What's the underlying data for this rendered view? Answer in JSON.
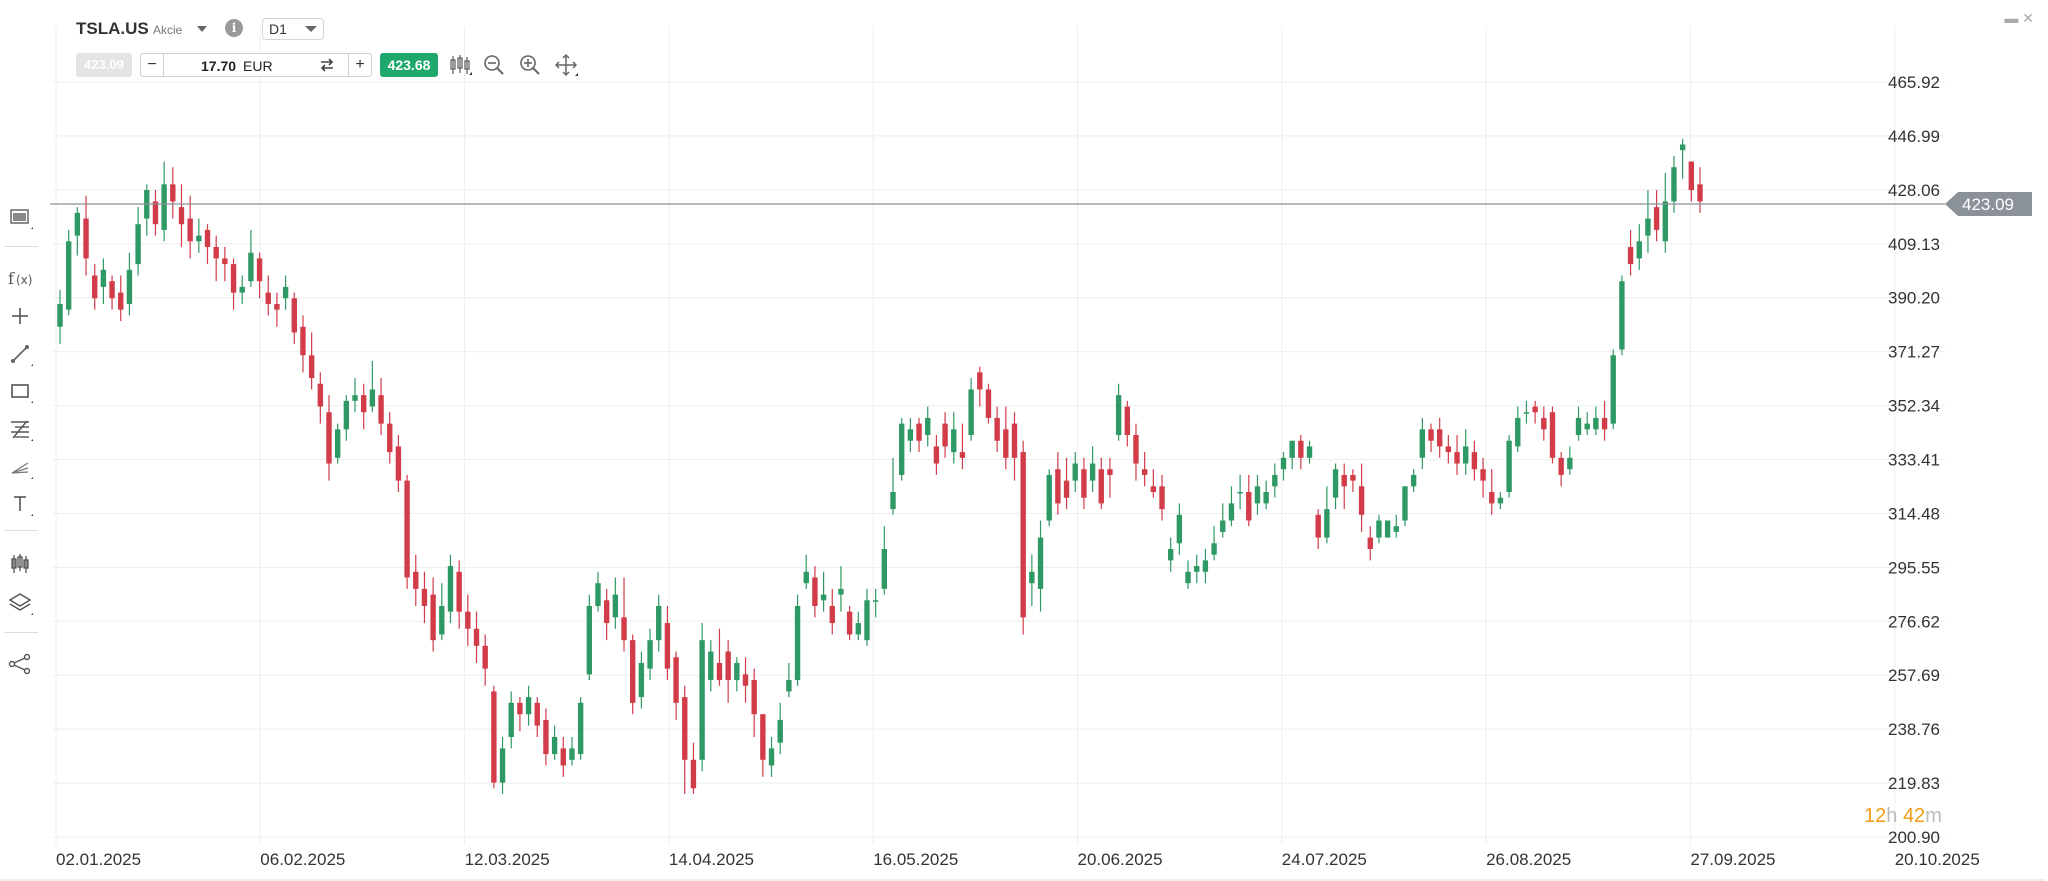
{
  "header": {
    "symbol": "TSLA.US",
    "symbol_type": "Akcie",
    "timeframe": "D1",
    "icons": {
      "info": "info-icon",
      "dropdown": "chevron-down-icon"
    }
  },
  "trade": {
    "sell_price": "423.09",
    "buy_price": "423.68",
    "quantity": "17.70",
    "currency": "EUR",
    "minus_label": "−",
    "plus_label": "+",
    "colors": {
      "buy": "#1fa86b",
      "sell_disabled": "#e4e4e4"
    }
  },
  "toolbar_icons": [
    "candles-icon",
    "zoom-out-icon",
    "zoom-in-icon",
    "crosshair-move-icon"
  ],
  "left_toolbar_icons": [
    "window-icon",
    "function-icon",
    "crosshair-icon",
    "line-tool-icon",
    "rectangle-icon",
    "fibonacci-icon",
    "pitchfork-icon",
    "text-tool-icon",
    "chart-type-icon",
    "layers-icon",
    "share-icon"
  ],
  "countdown": {
    "hours": "12",
    "h_unit": "h",
    "minutes": "42",
    "m_unit": "m"
  },
  "chart_data": {
    "type": "candlestick",
    "symbol": "TSLA.US",
    "timeframe": "D1",
    "current_price": 423.09,
    "y_range": [
      200.9,
      465.92
    ],
    "y_ticks": [
      "465.92",
      "446.99",
      "428.06",
      "409.13",
      "390.20",
      "371.27",
      "352.34",
      "333.41",
      "314.48",
      "295.55",
      "276.62",
      "257.69",
      "238.76",
      "219.83",
      "200.90"
    ],
    "x_ticks": [
      "02.01.2025",
      "06.02.2025",
      "12.03.2025",
      "14.04.2025",
      "16.05.2025",
      "20.06.2025",
      "24.07.2025",
      "26.08.2025",
      "27.09.2025",
      "20.10.2025"
    ],
    "up_color": "#2e9964",
    "down_color": "#d23b48",
    "grid": true,
    "candles": [
      [
        380,
        388,
        374,
        393
      ],
      [
        386,
        410,
        384,
        414
      ],
      [
        412,
        420,
        405,
        422
      ],
      [
        418,
        404,
        398,
        426
      ],
      [
        398,
        390,
        386,
        402
      ],
      [
        394,
        400,
        388,
        404
      ],
      [
        396,
        390,
        386,
        398
      ],
      [
        392,
        386,
        382,
        398
      ],
      [
        388,
        400,
        384,
        406
      ],
      [
        402,
        416,
        398,
        422
      ],
      [
        418,
        428,
        412,
        430
      ],
      [
        424,
        416,
        412,
        428
      ],
      [
        414,
        430,
        410,
        438
      ],
      [
        430,
        424,
        418,
        436
      ],
      [
        422,
        416,
        408,
        430
      ],
      [
        418,
        410,
        404,
        426
      ],
      [
        410,
        412,
        406,
        418
      ],
      [
        414,
        408,
        402,
        416
      ],
      [
        408,
        404,
        396,
        412
      ],
      [
        404,
        402,
        396,
        408
      ],
      [
        402,
        392,
        386,
        404
      ],
      [
        392,
        394,
        388,
        398
      ],
      [
        396,
        406,
        394,
        414
      ],
      [
        404,
        396,
        390,
        406
      ],
      [
        392,
        388,
        384,
        398
      ],
      [
        388,
        386,
        380,
        392
      ],
      [
        390,
        394,
        386,
        398
      ],
      [
        390,
        378,
        374,
        392
      ],
      [
        380,
        370,
        364,
        384
      ],
      [
        370,
        362,
        358,
        378
      ],
      [
        360,
        352,
        346,
        364
      ],
      [
        350,
        332,
        326,
        356
      ],
      [
        334,
        344,
        332,
        346
      ],
      [
        344,
        354,
        340,
        356
      ],
      [
        354,
        356,
        350,
        362
      ],
      [
        356,
        350,
        344,
        360
      ],
      [
        352,
        358,
        350,
        368
      ],
      [
        356,
        346,
        342,
        362
      ],
      [
        346,
        336,
        332,
        350
      ],
      [
        338,
        326,
        322,
        342
      ],
      [
        326,
        292,
        288,
        328
      ],
      [
        294,
        288,
        282,
        300
      ],
      [
        288,
        282,
        276,
        294
      ],
      [
        286,
        270,
        266,
        292
      ],
      [
        272,
        282,
        270,
        290
      ],
      [
        280,
        296,
        276,
        300
      ],
      [
        294,
        280,
        274,
        298
      ],
      [
        280,
        274,
        268,
        286
      ],
      [
        274,
        268,
        262,
        280
      ],
      [
        268,
        260,
        254,
        272
      ],
      [
        252,
        220,
        218,
        254
      ],
      [
        220,
        232,
        216,
        236
      ],
      [
        236,
        248,
        232,
        252
      ],
      [
        248,
        244,
        238,
        250
      ],
      [
        244,
        250,
        240,
        254
      ],
      [
        248,
        240,
        236,
        250
      ],
      [
        242,
        230,
        226,
        246
      ],
      [
        230,
        236,
        228,
        240
      ],
      [
        232,
        226,
        222,
        236
      ],
      [
        228,
        232,
        226,
        236
      ],
      [
        230,
        248,
        228,
        250
      ],
      [
        258,
        282,
        256,
        286
      ],
      [
        282,
        290,
        280,
        294
      ],
      [
        284,
        276,
        270,
        288
      ],
      [
        278,
        286,
        274,
        292
      ],
      [
        278,
        270,
        266,
        292
      ],
      [
        270,
        248,
        244,
        272
      ],
      [
        250,
        262,
        246,
        266
      ],
      [
        260,
        270,
        256,
        274
      ],
      [
        270,
        282,
        266,
        286
      ],
      [
        276,
        260,
        256,
        282
      ],
      [
        264,
        248,
        242,
        266
      ],
      [
        250,
        228,
        216,
        254
      ],
      [
        228,
        218,
        216,
        234
      ],
      [
        228,
        270,
        224,
        276
      ],
      [
        256,
        266,
        252,
        270
      ],
      [
        262,
        256,
        254,
        274
      ],
      [
        266,
        256,
        248,
        270
      ],
      [
        256,
        262,
        252,
        264
      ],
      [
        258,
        254,
        248,
        264
      ],
      [
        256,
        244,
        236,
        260
      ],
      [
        244,
        228,
        222,
        244
      ],
      [
        226,
        232,
        222,
        236
      ],
      [
        234,
        242,
        230,
        248
      ],
      [
        252,
        256,
        250,
        262
      ],
      [
        256,
        282,
        254,
        286
      ],
      [
        290,
        294,
        288,
        300
      ],
      [
        292,
        282,
        278,
        296
      ],
      [
        284,
        286,
        280,
        294
      ],
      [
        282,
        276,
        272,
        288
      ],
      [
        286,
        288,
        280,
        296
      ],
      [
        280,
        272,
        270,
        282
      ],
      [
        272,
        276,
        270,
        280
      ],
      [
        270,
        284,
        268,
        288
      ],
      [
        284,
        284,
        278,
        288
      ],
      [
        288,
        302,
        286,
        310
      ],
      [
        316,
        322,
        314,
        334
      ],
      [
        328,
        346,
        326,
        348
      ],
      [
        340,
        344,
        336,
        348
      ],
      [
        346,
        340,
        336,
        348
      ],
      [
        342,
        348,
        338,
        352
      ],
      [
        338,
        332,
        328,
        342
      ],
      [
        346,
        338,
        334,
        350
      ],
      [
        336,
        344,
        332,
        350
      ],
      [
        336,
        334,
        330,
        346
      ],
      [
        342,
        358,
        340,
        362
      ],
      [
        364,
        358,
        352,
        366
      ],
      [
        358,
        348,
        346,
        360
      ],
      [
        348,
        340,
        336,
        352
      ],
      [
        344,
        334,
        330,
        352
      ],
      [
        346,
        334,
        326,
        350
      ],
      [
        336,
        278,
        272,
        340
      ],
      [
        290,
        294,
        282,
        300
      ],
      [
        288,
        306,
        280,
        312
      ],
      [
        312,
        328,
        310,
        330
      ],
      [
        330,
        318,
        314,
        336
      ],
      [
        326,
        320,
        316,
        334
      ],
      [
        326,
        332,
        322,
        336
      ],
      [
        330,
        320,
        316,
        334
      ],
      [
        326,
        332,
        322,
        338
      ],
      [
        330,
        318,
        316,
        334
      ],
      [
        330,
        328,
        320,
        334
      ],
      [
        342,
        356,
        340,
        360
      ],
      [
        352,
        342,
        338,
        354
      ],
      [
        342,
        332,
        326,
        346
      ],
      [
        330,
        328,
        324,
        336
      ],
      [
        324,
        322,
        320,
        330
      ],
      [
        324,
        316,
        312,
        328
      ],
      [
        298,
        302,
        294,
        306
      ],
      [
        304,
        314,
        300,
        318
      ],
      [
        290,
        294,
        288,
        298
      ],
      [
        294,
        296,
        290,
        300
      ],
      [
        294,
        298,
        290,
        302
      ],
      [
        300,
        304,
        298,
        310
      ],
      [
        308,
        312,
        306,
        318
      ],
      [
        312,
        318,
        310,
        324
      ],
      [
        322,
        322,
        316,
        328
      ],
      [
        322,
        312,
        310,
        328
      ],
      [
        318,
        324,
        314,
        328
      ],
      [
        318,
        322,
        316,
        326
      ],
      [
        324,
        328,
        320,
        332
      ],
      [
        330,
        334,
        326,
        336
      ],
      [
        334,
        340,
        330,
        340
      ],
      [
        340,
        334,
        330,
        342
      ],
      [
        334,
        338,
        332,
        340
      ],
      [
        314,
        306,
        302,
        316
      ],
      [
        306,
        316,
        304,
        324
      ],
      [
        320,
        330,
        316,
        332
      ],
      [
        328,
        324,
        316,
        332
      ],
      [
        328,
        326,
        322,
        330
      ],
      [
        324,
        314,
        308,
        332
      ],
      [
        306,
        302,
        298,
        310
      ],
      [
        306,
        312,
        304,
        314
      ],
      [
        306,
        312,
        306,
        312
      ],
      [
        308,
        310,
        306,
        314
      ],
      [
        312,
        324,
        310,
        324
      ],
      [
        324,
        328,
        322,
        330
      ],
      [
        334,
        344,
        330,
        348
      ],
      [
        344,
        340,
        336,
        346
      ],
      [
        344,
        338,
        334,
        348
      ],
      [
        338,
        336,
        332,
        342
      ],
      [
        336,
        332,
        328,
        342
      ],
      [
        332,
        338,
        328,
        344
      ],
      [
        336,
        330,
        326,
        340
      ],
      [
        330,
        326,
        320,
        334
      ],
      [
        322,
        318,
        314,
        330
      ],
      [
        318,
        320,
        316,
        322
      ],
      [
        322,
        340,
        320,
        342
      ],
      [
        338,
        348,
        336,
        352
      ],
      [
        350,
        350,
        346,
        354
      ],
      [
        352,
        350,
        346,
        354
      ],
      [
        348,
        344,
        340,
        352
      ],
      [
        350,
        334,
        332,
        352
      ],
      [
        334,
        328,
        324,
        336
      ],
      [
        330,
        334,
        328,
        338
      ],
      [
        342,
        348,
        340,
        352
      ],
      [
        344,
        346,
        342,
        350
      ],
      [
        344,
        348,
        342,
        352
      ],
      [
        348,
        344,
        340,
        354
      ],
      [
        346,
        370,
        344,
        372
      ],
      [
        372,
        396,
        370,
        398
      ],
      [
        408,
        402,
        398,
        414
      ],
      [
        404,
        410,
        400,
        416
      ],
      [
        412,
        418,
        406,
        428
      ],
      [
        422,
        414,
        410,
        428
      ],
      [
        410,
        424,
        406,
        434
      ],
      [
        424,
        436,
        420,
        440
      ],
      [
        442,
        444,
        432,
        446
      ],
      [
        438,
        428,
        424,
        438
      ],
      [
        430,
        424,
        420,
        436
      ]
    ]
  }
}
